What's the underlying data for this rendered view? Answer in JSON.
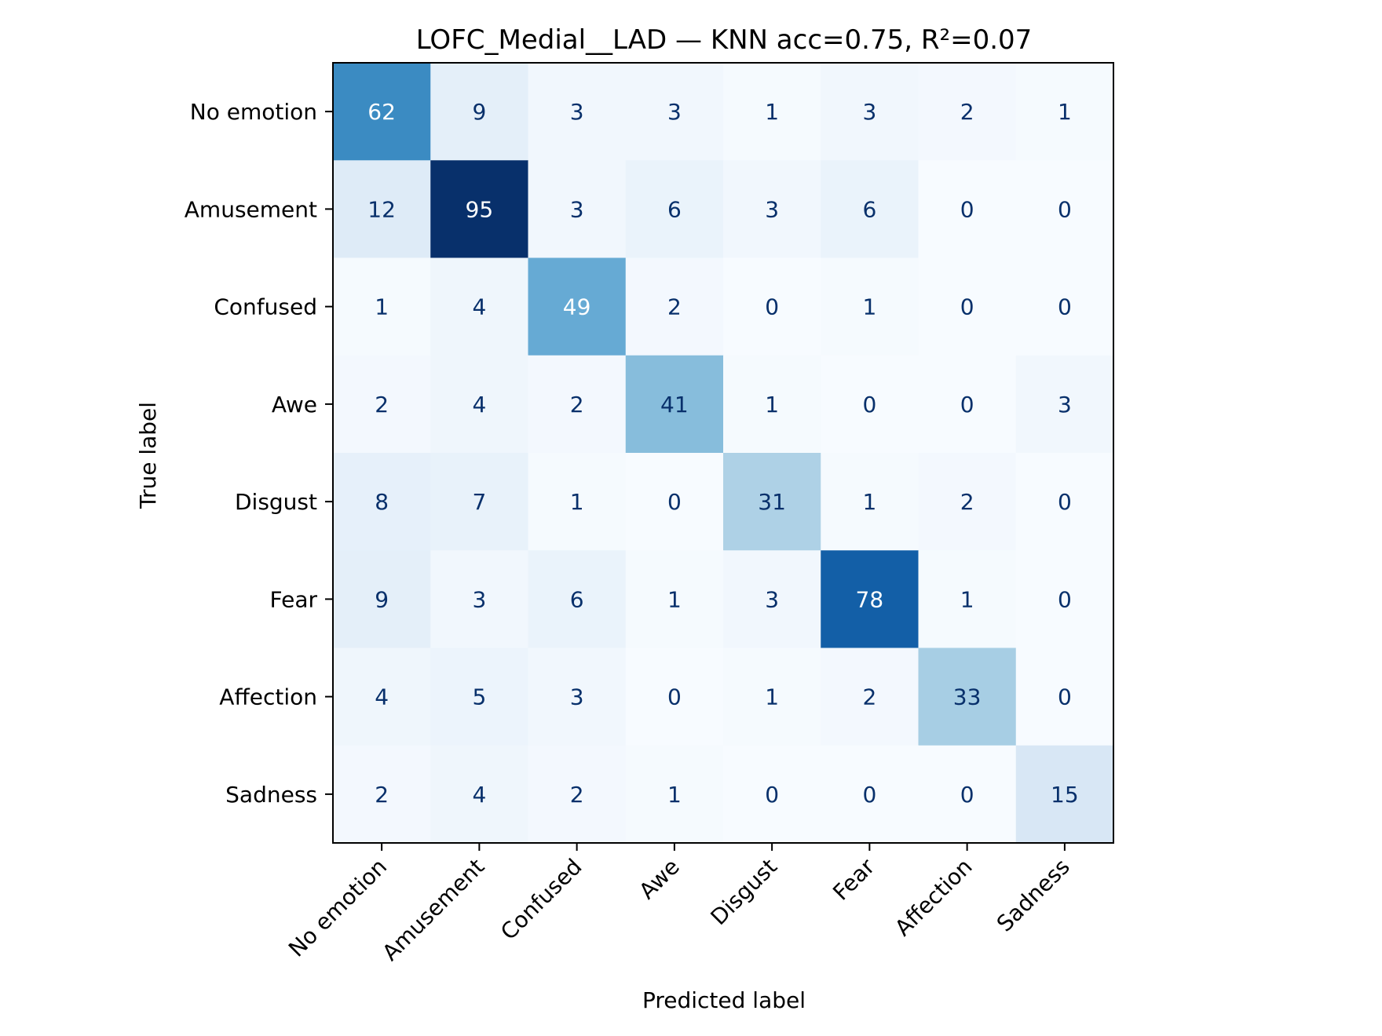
{
  "chart_data": {
    "type": "heatmap",
    "title": "LOFC_Medial__LAD — KNN acc=0.75, R²=0.07",
    "xlabel": "Predicted label",
    "ylabel": "True label",
    "x_categories": [
      "No emotion",
      "Amusement",
      "Confused",
      "Awe",
      "Disgust",
      "Fear",
      "Affection",
      "Sadness"
    ],
    "y_categories": [
      "No emotion",
      "Amusement",
      "Confused",
      "Awe",
      "Disgust",
      "Fear",
      "Affection",
      "Sadness"
    ],
    "values": [
      [
        62,
        9,
        3,
        3,
        1,
        3,
        2,
        1
      ],
      [
        12,
        95,
        3,
        6,
        3,
        6,
        0,
        0
      ],
      [
        1,
        4,
        49,
        2,
        0,
        1,
        0,
        0
      ],
      [
        2,
        4,
        2,
        41,
        1,
        0,
        0,
        3
      ],
      [
        8,
        7,
        1,
        0,
        31,
        1,
        2,
        0
      ],
      [
        9,
        3,
        6,
        1,
        3,
        78,
        1,
        0
      ],
      [
        4,
        5,
        3,
        0,
        1,
        2,
        33,
        0
      ],
      [
        2,
        4,
        2,
        1,
        0,
        0,
        0,
        15
      ]
    ],
    "colormap": "Blues",
    "value_range": [
      0,
      95
    ],
    "grid": false,
    "colors": {
      "low": "#f7fbff",
      "high": "#08306b",
      "dark_text": "#08306b",
      "light_text": "#ffffff"
    }
  }
}
